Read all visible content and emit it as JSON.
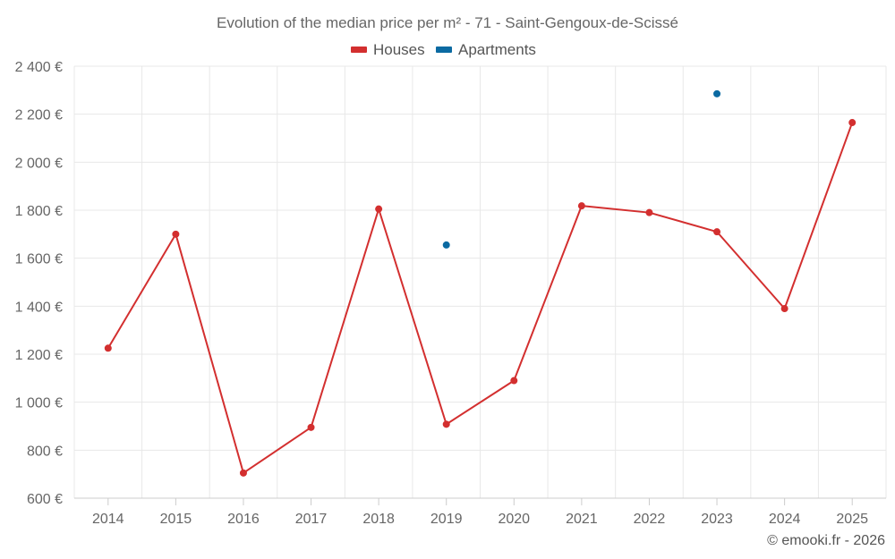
{
  "chart_data": {
    "type": "line",
    "title": "Evolution of the median price per m² - 71 - Saint-Gengoux-de-Scissé",
    "categories": [
      "2014",
      "2015",
      "2016",
      "2017",
      "2018",
      "2019",
      "2020",
      "2021",
      "2022",
      "2023",
      "2024",
      "2025"
    ],
    "series": [
      {
        "name": "Houses",
        "color": "#d32f2f",
        "values": [
          1225,
          1700,
          705,
          895,
          1805,
          908,
          1090,
          1818,
          1790,
          1710,
          1390,
          2165
        ]
      },
      {
        "name": "Apartments",
        "color": "#0b6aa2",
        "values": [
          null,
          null,
          null,
          null,
          null,
          1655,
          null,
          null,
          null,
          2285,
          null,
          null
        ]
      }
    ],
    "ylim": [
      600,
      2400
    ],
    "yticks": [
      600,
      800,
      1000,
      1200,
      1400,
      1600,
      1800,
      2000,
      2200,
      2400
    ],
    "ytick_labels": [
      "600 €",
      "800 €",
      "1 000 €",
      "1 200 €",
      "1 400 €",
      "1 600 €",
      "1 800 €",
      "2 000 €",
      "2 200 €",
      "2 400 €"
    ],
    "legend_position": "top-center",
    "grid": true
  },
  "credit": "© emooki.fr - 2026"
}
